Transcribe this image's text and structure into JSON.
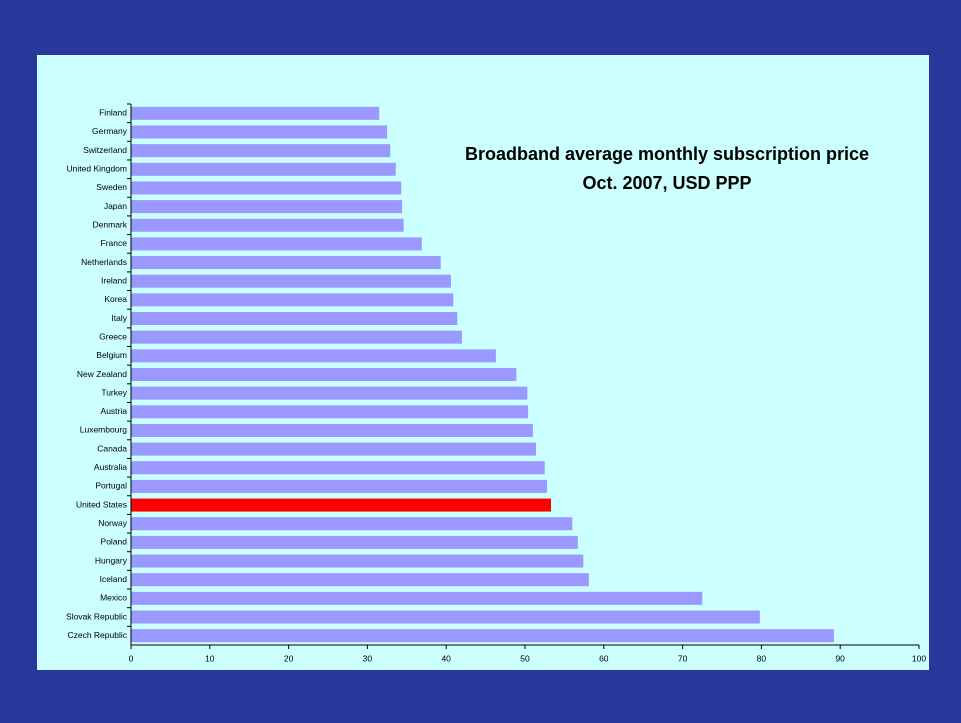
{
  "chart_data": {
    "type": "hbar",
    "title": [
      "Broadband average monthly subscription price",
      "Oct. 2007, USD PPP"
    ],
    "categories": [
      "Finland",
      "Germany",
      "Switzerland",
      "United Kingdom",
      "Sweden",
      "Japan",
      "Denmark",
      "France",
      "Netherlands",
      "Ireland",
      "Korea",
      "Italy",
      "Greece",
      "Belgium",
      "New Zealand",
      "Turkey",
      "Austria",
      "Luxembourg",
      "Canada",
      "Australia",
      "Portugal",
      "United States",
      "Norway",
      "Poland",
      "Hungary",
      "Iceland",
      "Mexico",
      "Slovak Republic",
      "Czech Republic"
    ],
    "values": [
      31.5,
      32.5,
      32.9,
      33.6,
      34.3,
      34.4,
      34.6,
      36.9,
      39.3,
      40.6,
      40.9,
      41.4,
      42.0,
      46.3,
      48.9,
      50.3,
      50.4,
      51.0,
      51.4,
      52.5,
      52.8,
      53.3,
      56.0,
      56.7,
      57.4,
      58.1,
      72.5,
      79.8,
      89.2
    ],
    "colors": [
      "#9999ff",
      "#9999ff",
      "#9999ff",
      "#9999ff",
      "#9999ff",
      "#9999ff",
      "#9999ff",
      "#9999ff",
      "#9999ff",
      "#9999ff",
      "#9999ff",
      "#9999ff",
      "#9999ff",
      "#9999ff",
      "#9999ff",
      "#9999ff",
      "#9999ff",
      "#9999ff",
      "#9999ff",
      "#9999ff",
      "#9999ff",
      "#ff0000",
      "#9999ff",
      "#9999ff",
      "#9999ff",
      "#9999ff",
      "#9999ff",
      "#9999ff",
      "#9999ff"
    ],
    "xlim": [
      0,
      100
    ],
    "xticks": [
      0,
      10,
      20,
      30,
      40,
      50,
      60,
      70,
      80,
      90,
      100
    ],
    "grid": false
  }
}
